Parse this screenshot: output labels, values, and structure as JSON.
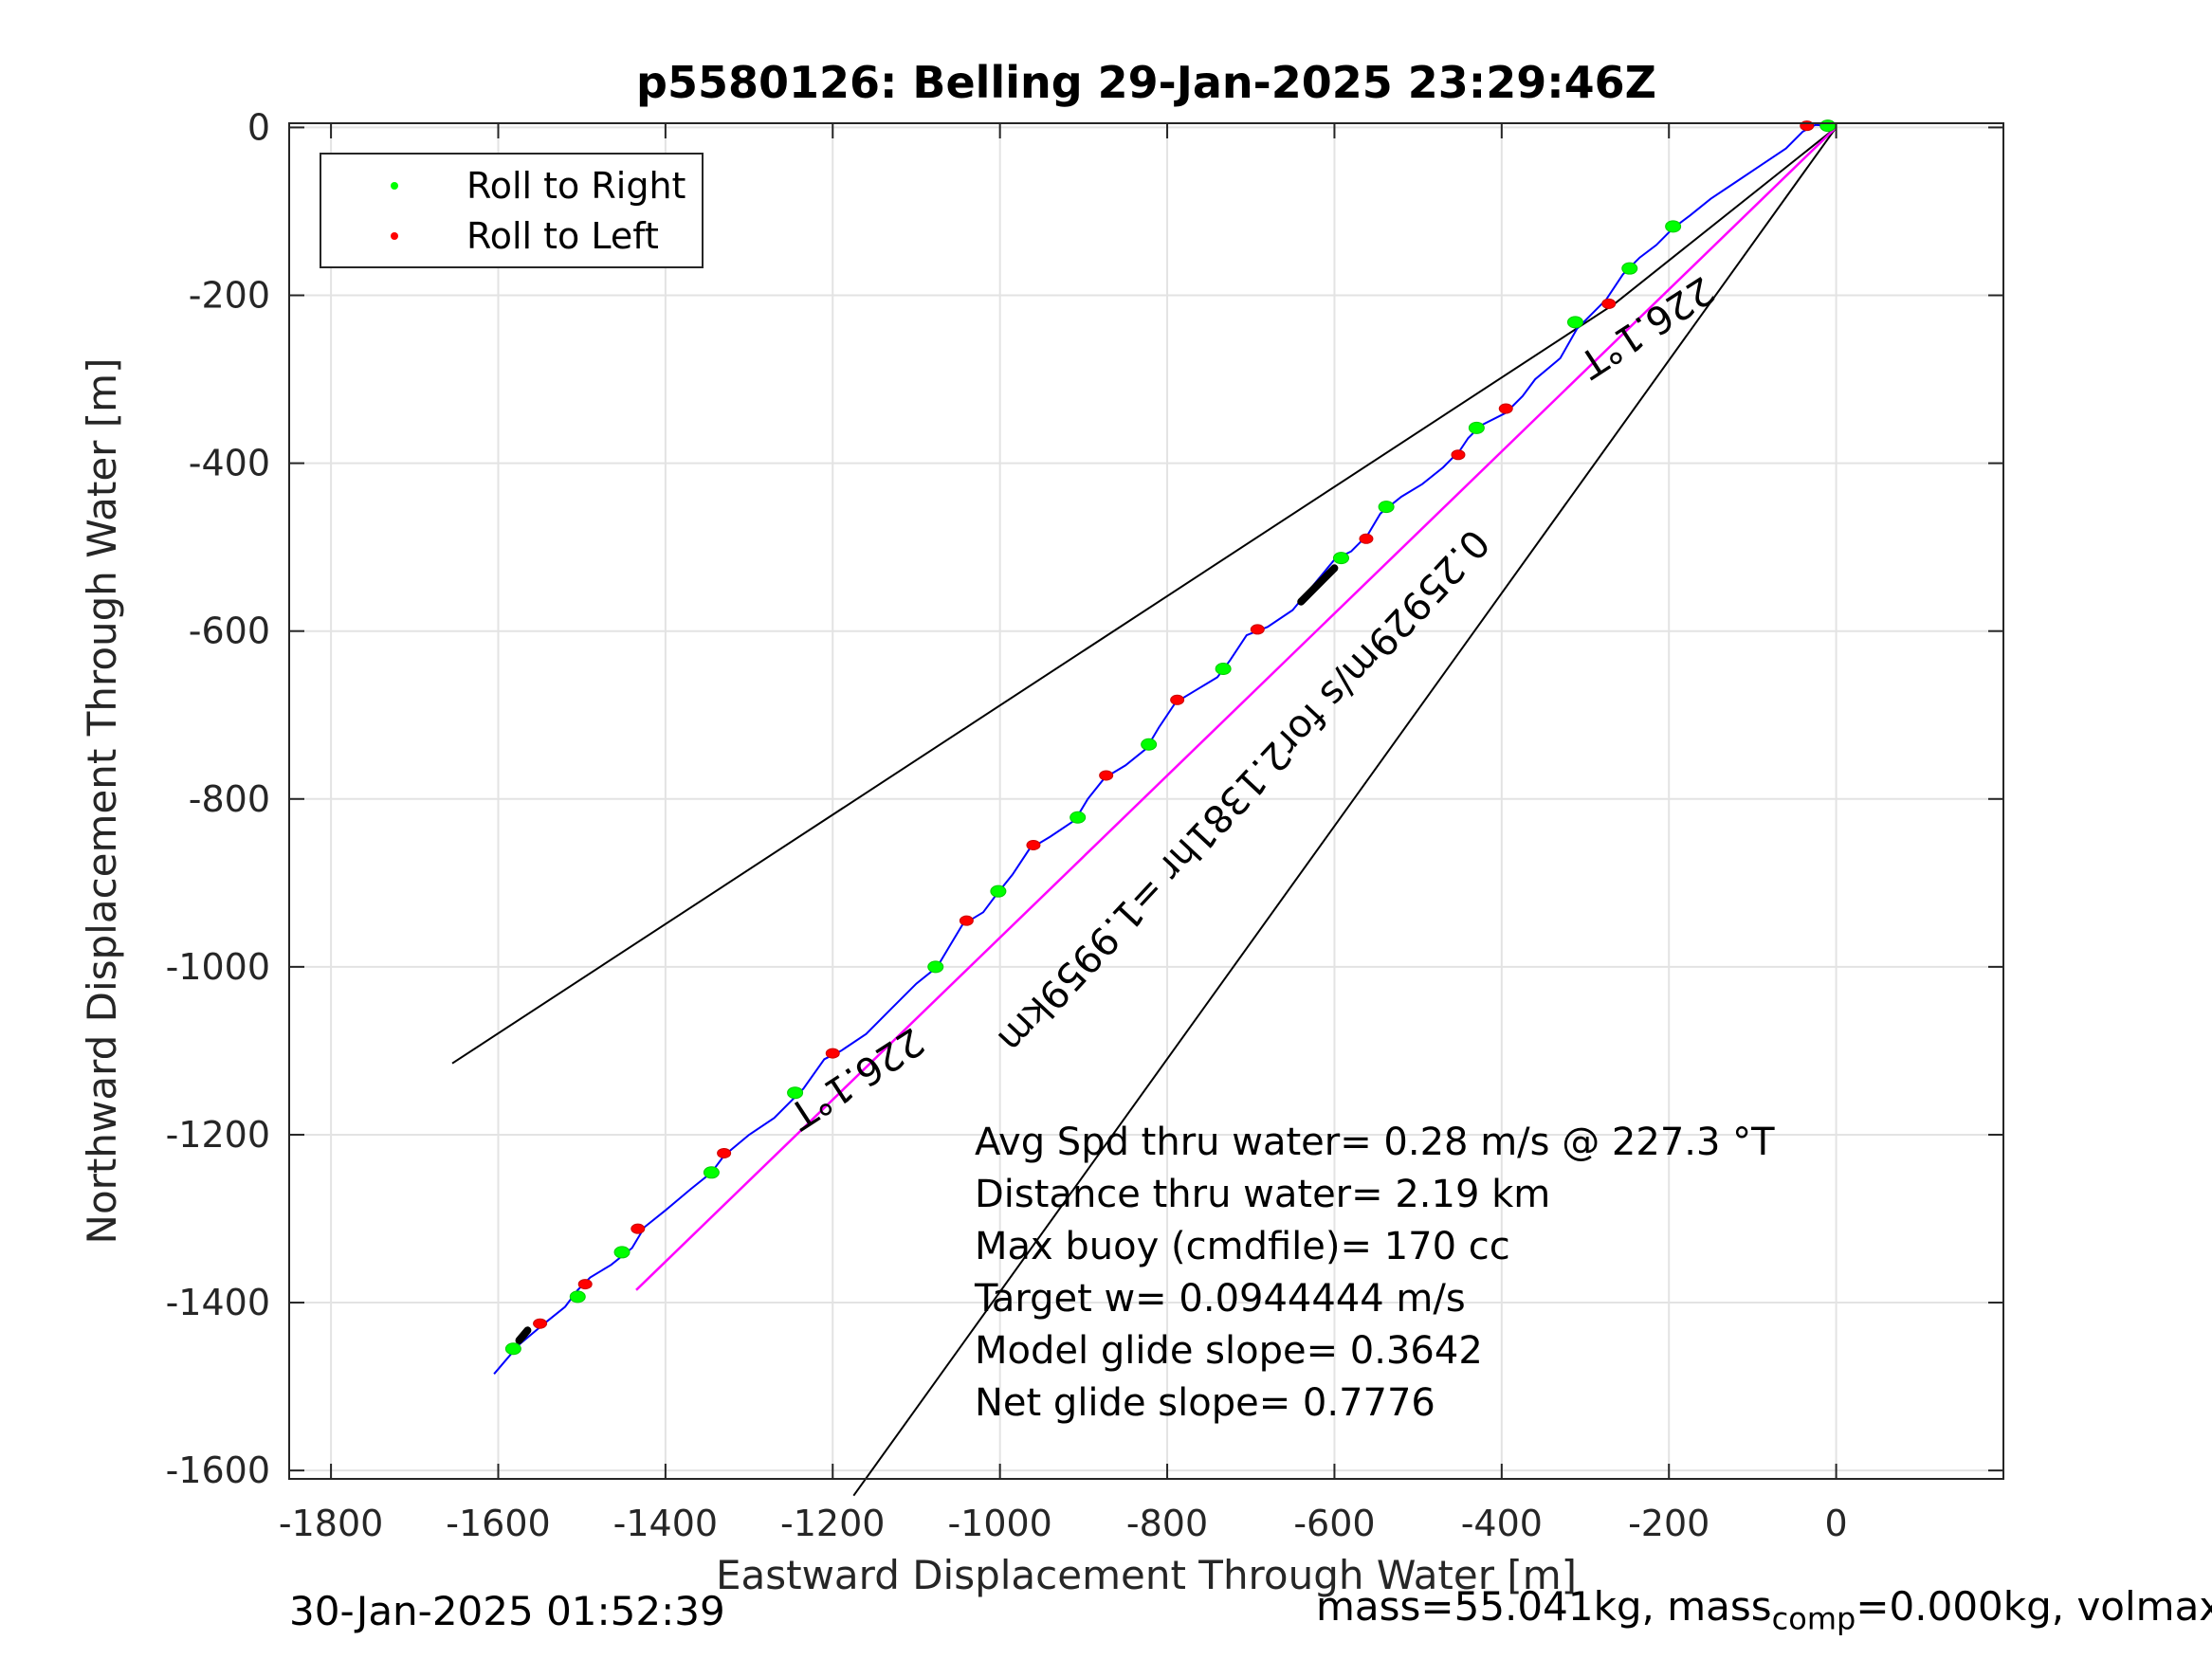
{
  "footer": {
    "timestamp": "30-Jan-2025 01:52:39",
    "mass_text": "mass=55.041kg, mass",
    "mass_sub": "comp",
    "mass_rest": "=0.000kg, volmax"
  },
  "chart_data": {
    "type": "line",
    "title": "p5580126: Belling 29-Jan-2025 23:29:46Z",
    "xlabel": "Eastward Displacement Through Water [m]",
    "ylabel": "Northward Displacement Through Water [m]",
    "xlim": [
      -1850,
      200
    ],
    "ylim": [
      -1610,
      5
    ],
    "xticks": [
      -1800,
      -1600,
      -1400,
      -1200,
      -1000,
      -800,
      -600,
      -400,
      -200,
      0
    ],
    "yticks": [
      0,
      -200,
      -400,
      -600,
      -800,
      -1000,
      -1200,
      -1400,
      -1600
    ],
    "grid": true,
    "legend": {
      "position": "top-left",
      "entries": [
        {
          "label": "Roll to Right",
          "color": "#00ff00"
        },
        {
          "label": "Roll to Left",
          "color": "#ff0000"
        }
      ]
    },
    "track": {
      "color": "#0000ff",
      "points": [
        [
          -1605,
          -1485
        ],
        [
          -1575,
          -1450
        ],
        [
          -1545,
          -1425
        ],
        [
          -1520,
          -1405
        ],
        [
          -1505,
          -1385
        ],
        [
          -1490,
          -1370
        ],
        [
          -1465,
          -1355
        ],
        [
          -1440,
          -1335
        ],
        [
          -1425,
          -1310
        ],
        [
          -1400,
          -1290
        ],
        [
          -1370,
          -1265
        ],
        [
          -1345,
          -1245
        ],
        [
          -1330,
          -1225
        ],
        [
          -1300,
          -1200
        ],
        [
          -1270,
          -1180
        ],
        [
          -1235,
          -1145
        ],
        [
          -1210,
          -1110
        ],
        [
          -1190,
          -1100
        ],
        [
          -1160,
          -1080
        ],
        [
          -1130,
          -1050
        ],
        [
          -1100,
          -1020
        ],
        [
          -1075,
          -1000
        ],
        [
          -1060,
          -975
        ],
        [
          -1045,
          -950
        ],
        [
          -1020,
          -935
        ],
        [
          -1005,
          -915
        ],
        [
          -985,
          -890
        ],
        [
          -965,
          -860
        ],
        [
          -940,
          -845
        ],
        [
          -910,
          -825
        ],
        [
          -895,
          -800
        ],
        [
          -875,
          -775
        ],
        [
          -850,
          -760
        ],
        [
          -825,
          -740
        ],
        [
          -810,
          -715
        ],
        [
          -790,
          -685
        ],
        [
          -765,
          -670
        ],
        [
          -740,
          -655
        ],
        [
          -725,
          -635
        ],
        [
          -705,
          -605
        ],
        [
          -680,
          -595
        ],
        [
          -650,
          -575
        ],
        [
          -625,
          -545
        ],
        [
          -600,
          -515
        ],
        [
          -580,
          -505
        ],
        [
          -560,
          -485
        ],
        [
          -545,
          -460
        ],
        [
          -520,
          -440
        ],
        [
          -495,
          -425
        ],
        [
          -470,
          -405
        ],
        [
          -450,
          -385
        ],
        [
          -440,
          -370
        ],
        [
          -425,
          -355
        ],
        [
          -395,
          -340
        ],
        [
          -375,
          -320
        ],
        [
          -360,
          -300
        ],
        [
          -330,
          -275
        ],
        [
          -310,
          -240
        ],
        [
          -295,
          -225
        ],
        [
          -275,
          -205
        ],
        [
          -255,
          -175
        ],
        [
          -235,
          -155
        ],
        [
          -215,
          -140
        ],
        [
          -195,
          -120
        ],
        [
          -175,
          -105
        ],
        [
          -150,
          -85
        ],
        [
          -120,
          -65
        ],
        [
          -90,
          -45
        ],
        [
          -60,
          -25
        ],
        [
          -40,
          -5
        ],
        [
          -25,
          3
        ],
        [
          -10,
          2
        ],
        [
          0,
          0
        ]
      ]
    },
    "roll_right": [
      [
        -1582,
        -1455
      ],
      [
        -1505,
        -1393
      ],
      [
        -1452,
        -1340
      ],
      [
        -1345,
        -1245
      ],
      [
        -1245,
        -1150
      ],
      [
        -1077,
        -1000
      ],
      [
        -1002,
        -910
      ],
      [
        -907,
        -822
      ],
      [
        -822,
        -735
      ],
      [
        -733,
        -645
      ],
      [
        -592,
        -513
      ],
      [
        -538,
        -452
      ],
      [
        -430,
        -358
      ],
      [
        -312,
        -232
      ],
      [
        -247,
        -168
      ],
      [
        -195,
        -118
      ],
      [
        -10,
        2
      ]
    ],
    "roll_left": [
      [
        -1550,
        -1425
      ],
      [
        -1496,
        -1378
      ],
      [
        -1433,
        -1312
      ],
      [
        -1330,
        -1222
      ],
      [
        -1200,
        -1103
      ],
      [
        -1040,
        -945
      ],
      [
        -960,
        -855
      ],
      [
        -873,
        -772
      ],
      [
        -788,
        -682
      ],
      [
        -692,
        -598
      ],
      [
        -562,
        -490
      ],
      [
        -452,
        -390
      ],
      [
        -395,
        -335
      ],
      [
        -272,
        -210
      ],
      [
        -35,
        2
      ]
    ],
    "thick_segments": [
      [
        [
          -1575,
          -1445
        ],
        [
          -1565,
          -1433
        ]
      ],
      [
        [
          -640,
          -565
        ],
        [
          -600,
          -525
        ]
      ]
    ],
    "black_lines": [
      [
        [
          -1655,
          -1115
        ],
        [
          -265,
          -210
        ],
        [
          0,
          0
        ]
      ],
      [
        [
          -1175,
          -1630
        ],
        [
          0,
          0
        ]
      ]
    ],
    "magenta_line": [
      [
        -1435,
        -1385
      ],
      [
        0,
        0
      ]
    ],
    "line_labels": [
      {
        "text": "226.1°T",
        "x": -1180,
        "y": -1120,
        "angle": 147
      },
      {
        "text": "226.1°T",
        "x": -235,
        "y": -225,
        "angle": 147
      },
      {
        "text": "0.25929m/s for2.1381hr =1.9959km",
        "x": -720,
        "y": -780,
        "angle": 133
      }
    ],
    "annotations": [
      "Avg Spd thru water=  0.28 m/s @ 227.3 °T",
      "Distance thru water=  2.19 km",
      "Max buoy (cmdfile)= 170 cc",
      "Target w= 0.0944444 m/s",
      "Model glide slope= 0.3642",
      "Net glide slope= 0.7776"
    ]
  }
}
